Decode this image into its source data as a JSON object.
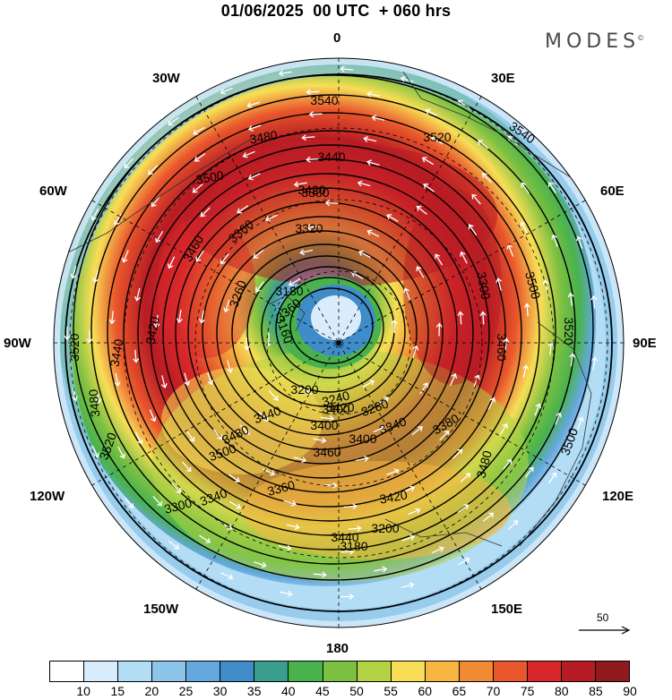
{
  "title": "01/06/2025  00 UTC  + 060 hrs",
  "brand": "MODES",
  "brand_mark": "©",
  "longitude_labels": {
    "lon_0": "0",
    "lon_30e": "30E",
    "lon_60e": "60E",
    "lon_90e": "90E",
    "lon_120e": "120E",
    "lon_150e": "150E",
    "lon_180": "180",
    "lon_150w": "150W",
    "lon_120w": "120W",
    "lon_90w": "90W",
    "lon_60w": "60W",
    "lon_30w": "30W"
  },
  "reference_vector_label": "50",
  "colorbar": {
    "colors": [
      "#ffffff",
      "#d8ecfb",
      "#b3dcf5",
      "#8cc4ea",
      "#64a8dd",
      "#3f8cc8",
      "#3a9e8e",
      "#49b24d",
      "#7cc042",
      "#b3d345",
      "#f7de56",
      "#f7b541",
      "#f08a33",
      "#e9572c",
      "#d8282b",
      "#b71c24",
      "#911a1e"
    ],
    "labels": [
      "10",
      "15",
      "20",
      "25",
      "30",
      "35",
      "40",
      "45",
      "50",
      "55",
      "60",
      "65",
      "70",
      "75",
      "80",
      "85",
      "90"
    ]
  },
  "contour_labels": [
    "3540",
    "3540",
    "3520",
    "3480",
    "3500",
    "3440",
    "3420",
    "3380",
    "3360",
    "3320",
    "3300",
    "3260",
    "3180",
    "3160",
    "3200",
    "3240",
    "3280",
    "3340",
    "3400",
    "3460",
    "3500",
    "3520",
    "3520",
    "3480",
    "3440",
    "3420",
    "3460",
    "3480",
    "3500",
    "3520",
    "3500",
    "3480",
    "3440",
    "3400",
    "3360",
    "3340",
    "3300",
    "3200",
    "3180",
    "3380",
    "3400",
    "3420",
    "3460",
    "3440",
    "3420",
    "3360"
  ],
  "chart_data": {
    "type": "map",
    "projection": "north polar stereographic",
    "field_shaded": "wind speed",
    "field_contoured": "geopotential height",
    "vectors": "wind direction",
    "contour_interval": 20
  }
}
